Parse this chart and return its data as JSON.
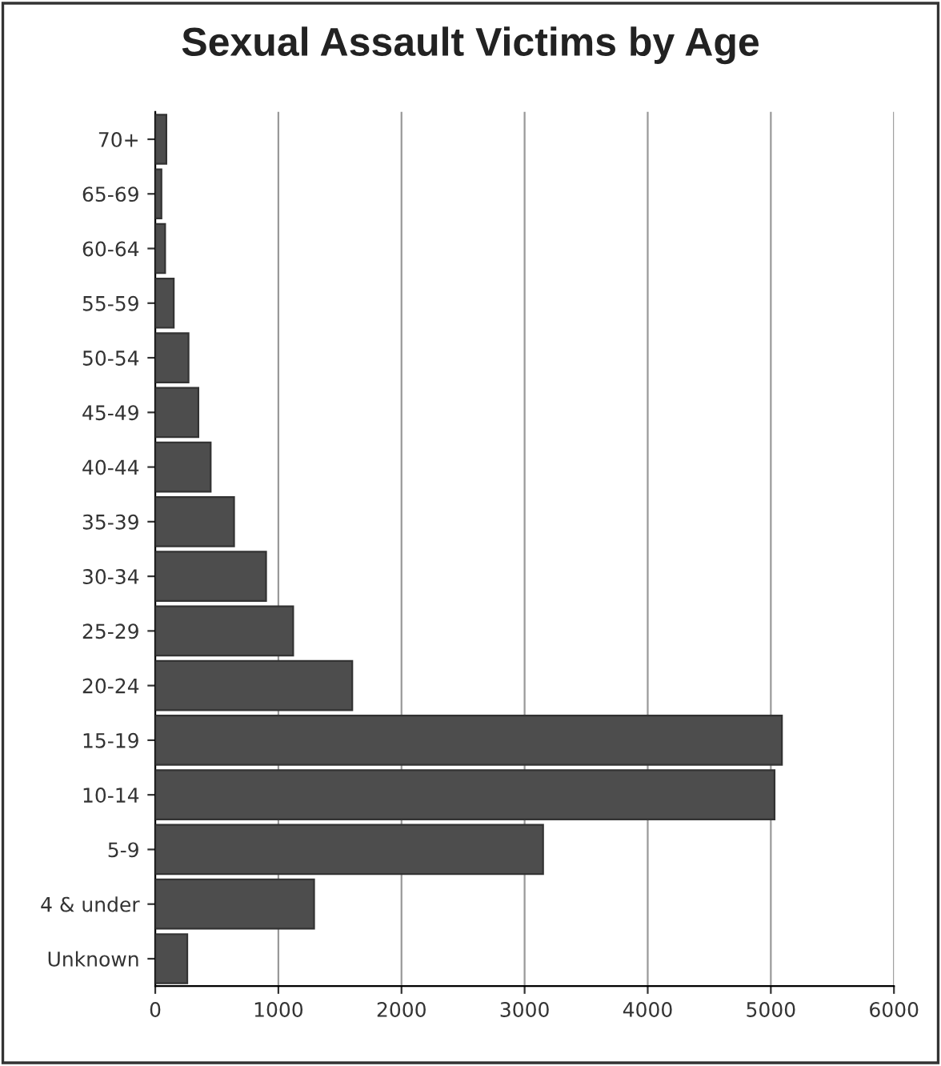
{
  "chart_data": {
    "type": "bar",
    "orientation": "horizontal",
    "title": "Sexual Assault Victims by Age",
    "categories": [
      "70+",
      "65-69",
      "60-64",
      "55-59",
      "50-54",
      "45-49",
      "40-44",
      "35-39",
      "30-34",
      "25-29",
      "20-24",
      "15-19",
      "10-14",
      "5-9",
      "4 & under",
      "Unknown"
    ],
    "values": [
      90,
      50,
      80,
      150,
      270,
      350,
      450,
      640,
      900,
      1120,
      1600,
      5090,
      5030,
      3150,
      1290,
      260
    ],
    "color": "#4d4d4d",
    "xlim": [
      0,
      6000
    ],
    "xticks": [
      0,
      1000,
      2000,
      3000,
      4000,
      5000,
      6000
    ],
    "grid": "x"
  }
}
